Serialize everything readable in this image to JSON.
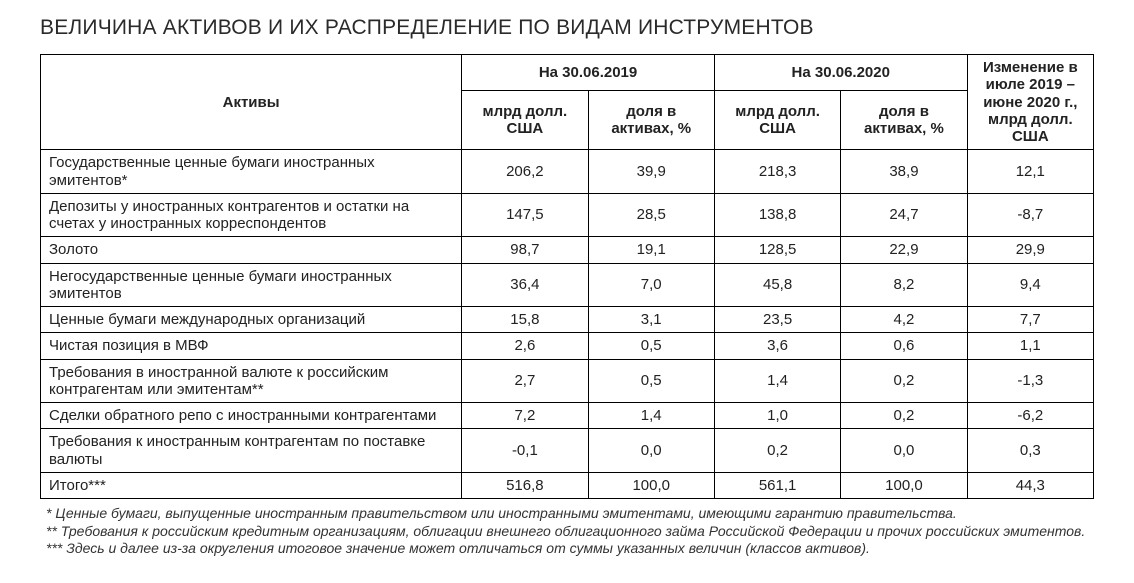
{
  "title": "ВЕЛИЧИНА АКТИВОВ И ИХ РАСПРЕДЕЛЕНИЕ ПО ВИДАМ ИНСТРУМЕНТОВ",
  "table": {
    "type": "table",
    "columns": {
      "assets_label": "Активы",
      "period1_label": "На 30.06.2019",
      "period2_label": "На 30.06.2020",
      "change_label": "Изменение в июле 2019 – июне 2020 г., млрд долл. США",
      "sub_usd_bln": "млрд долл. США",
      "sub_share_pct": "доля в активах, %",
      "widths": {
        "label": "40%",
        "value": "12%"
      },
      "alignment": {
        "label": "left",
        "values": "center"
      }
    },
    "header_fontsize": 15,
    "header_fontweight": 700,
    "cell_fontsize": 15,
    "border_color": "#000000",
    "background_color": "#ffffff",
    "text_color": "#222222",
    "rows": [
      {
        "label": "Государственные ценные бумаги иностранных эмитентов*",
        "p1_usd": "206,2",
        "p1_pct": "39,9",
        "p2_usd": "218,3",
        "p2_pct": "38,9",
        "change": "12,1"
      },
      {
        "label": "Депозиты у иностранных контрагентов и остатки на счетах у иностранных корреспондентов",
        "p1_usd": "147,5",
        "p1_pct": "28,5",
        "p2_usd": "138,8",
        "p2_pct": "24,7",
        "change": "-8,7"
      },
      {
        "label": "Золото",
        "p1_usd": "98,7",
        "p1_pct": "19,1",
        "p2_usd": "128,5",
        "p2_pct": "22,9",
        "change": "29,9"
      },
      {
        "label": "Негосударственные ценные бумаги иностранных эмитентов",
        "p1_usd": "36,4",
        "p1_pct": "7,0",
        "p2_usd": "45,8",
        "p2_pct": "8,2",
        "change": "9,4"
      },
      {
        "label": "Ценные бумаги международных организаций",
        "p1_usd": "15,8",
        "p1_pct": "3,1",
        "p2_usd": "23,5",
        "p2_pct": "4,2",
        "change": "7,7"
      },
      {
        "label": "Чистая позиция в МВФ",
        "p1_usd": "2,6",
        "p1_pct": "0,5",
        "p2_usd": "3,6",
        "p2_pct": "0,6",
        "change": "1,1"
      },
      {
        "label": "Требования в иностранной валюте к российским контрагентам или эмитентам**",
        "p1_usd": "2,7",
        "p1_pct": "0,5",
        "p2_usd": "1,4",
        "p2_pct": "0,2",
        "change": "-1,3"
      },
      {
        "label": "Сделки обратного репо с иностранными контрагентами",
        "p1_usd": "7,2",
        "p1_pct": "1,4",
        "p2_usd": "1,0",
        "p2_pct": "0,2",
        "change": "-6,2"
      },
      {
        "label": "Требования к иностранным контрагентам по поставке валюты",
        "p1_usd": "-0,1",
        "p1_pct": "0,0",
        "p2_usd": "0,2",
        "p2_pct": "0,0",
        "change": "0,3"
      },
      {
        "label": "Итого***",
        "p1_usd": "516,8",
        "p1_pct": "100,0",
        "p2_usd": "561,1",
        "p2_pct": "100,0",
        "change": "44,3"
      }
    ]
  },
  "footnotes": [
    "* Ценные бумаги, выпущенные иностранным правительством или иностранными эмитентами, имеющими гарантию правительства.",
    "** Требования к российским кредитным организациям, облигации внешнего облигационного займа Российской Федерации и прочих российских эмитентов.",
    "*** Здесь и далее из-за округления итоговое значение может отличаться от суммы указанных величин (классов активов)."
  ],
  "footnote_style": {
    "fontsize": 14,
    "italic": true,
    "color": "#333333"
  }
}
